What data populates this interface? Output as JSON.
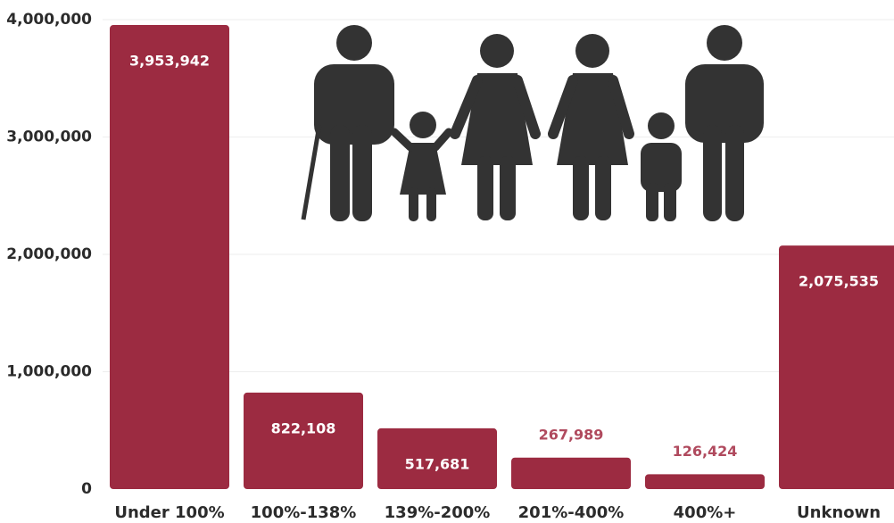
{
  "chart_data": {
    "type": "bar",
    "categories": [
      "Under 100%",
      "100%-138%",
      "139%-200%",
      "201%-400%",
      "400%+",
      "Unknown"
    ],
    "values": [
      3953942,
      822108,
      517681,
      267989,
      126424,
      2075535
    ],
    "value_labels": [
      "3,953,942",
      "822,108",
      "517,681",
      "267,989",
      "126,424",
      "2,075,535"
    ],
    "color": "#9c2b41",
    "ylim": [
      0,
      4000000
    ],
    "yticks": [
      0,
      {
        "value": 1000000,
        "label": "1,000,000"
      },
      {
        "value": 2000000,
        "label": "2,000,000"
      },
      {
        "value": 3000000,
        "label": "3,000,000"
      },
      {
        "value": 4000000,
        "label": "4,000,000"
      }
    ],
    "grid": true
  }
}
